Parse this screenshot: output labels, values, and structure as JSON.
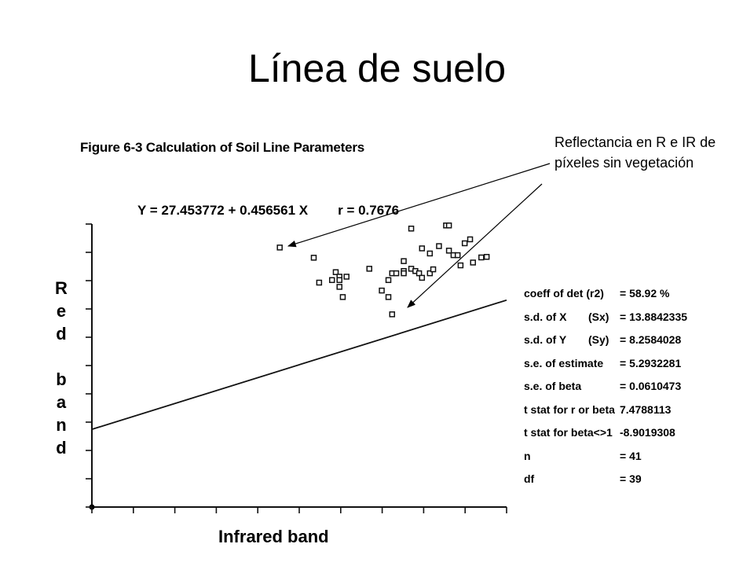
{
  "slide": {
    "title": "Línea de suelo",
    "annotation": "Reflectancia en R e IR de píxeles sin vegetación"
  },
  "figure": {
    "caption": "Figure 6-3  Calculation of Soil Line Parameters",
    "equation": "Y = 27.453772 + 0.456561 X",
    "r_text": "r = 0.7676"
  },
  "stats": [
    {
      "name": "coeff of det (r2)",
      "sym": "",
      "value": "= 58.92 %"
    },
    {
      "name": "s.d. of X",
      "sym": "(Sx)",
      "value": "= 13.8842335"
    },
    {
      "name": "s.d. of Y",
      "sym": "(Sy)",
      "value": "= 8.2584028"
    },
    {
      "name": "s.e. of estimate",
      "sym": "",
      "value": "= 5.2932281"
    },
    {
      "name": "s.e. of beta",
      "sym": "",
      "value": "= 0.0610473"
    },
    {
      "name": "t stat for r or beta",
      "sym": "",
      "value": "7.4788113"
    },
    {
      "name": "t stat for beta<>1",
      "sym": "",
      "value": "-8.9019308"
    },
    {
      "name": "n",
      "sym": "",
      "value": "= 41"
    },
    {
      "name": "df",
      "sym": "",
      "value": "= 39"
    }
  ],
  "chart_data": {
    "type": "scatter",
    "title": "Figure 6-3  Calculation of Soil Line Parameters",
    "xlabel": "Infrared band",
    "ylabel": "Red band",
    "xlim": [
      0,
      100
    ],
    "ylim": [
      0,
      100
    ],
    "grid": false,
    "regression_line": {
      "intercept": 27.453772,
      "slope": 0.456561,
      "x_range": [
        0,
        100
      ]
    },
    "series": [
      {
        "x": [
          45.3,
          53.5,
          54.8,
          57.9,
          58.8,
          59.7,
          59.7,
          59.7,
          60.5,
          61.4,
          66.9,
          69.9,
          71.5,
          71.5,
          72.4,
          72.4,
          73.4,
          75.2,
          75.2,
          75.2,
          77.0,
          77.0,
          78.0,
          78.9,
          79.6,
          79.6,
          81.5,
          81.5,
          82.3,
          83.7,
          85.4,
          86.1,
          86.1,
          87.2,
          88.2,
          88.9,
          89.9,
          91.2,
          91.9,
          93.9,
          95.2
        ],
        "y": [
          91.7,
          88.1,
          79.3,
          80.2,
          83.0,
          81.4,
          80.2,
          77.8,
          74.2,
          81.4,
          84.2,
          76.5,
          80.2,
          74.2,
          82.6,
          68.1,
          82.6,
          86.9,
          83.4,
          82.6,
          84.2,
          98.4,
          83.4,
          82.6,
          81.0,
          91.4,
          89.6,
          82.6,
          84.0,
          92.2,
          99.5,
          99.5,
          90.6,
          89.0,
          89.0,
          85.4,
          93.2,
          94.6,
          86.4,
          88.2,
          88.4
        ]
      }
    ]
  }
}
